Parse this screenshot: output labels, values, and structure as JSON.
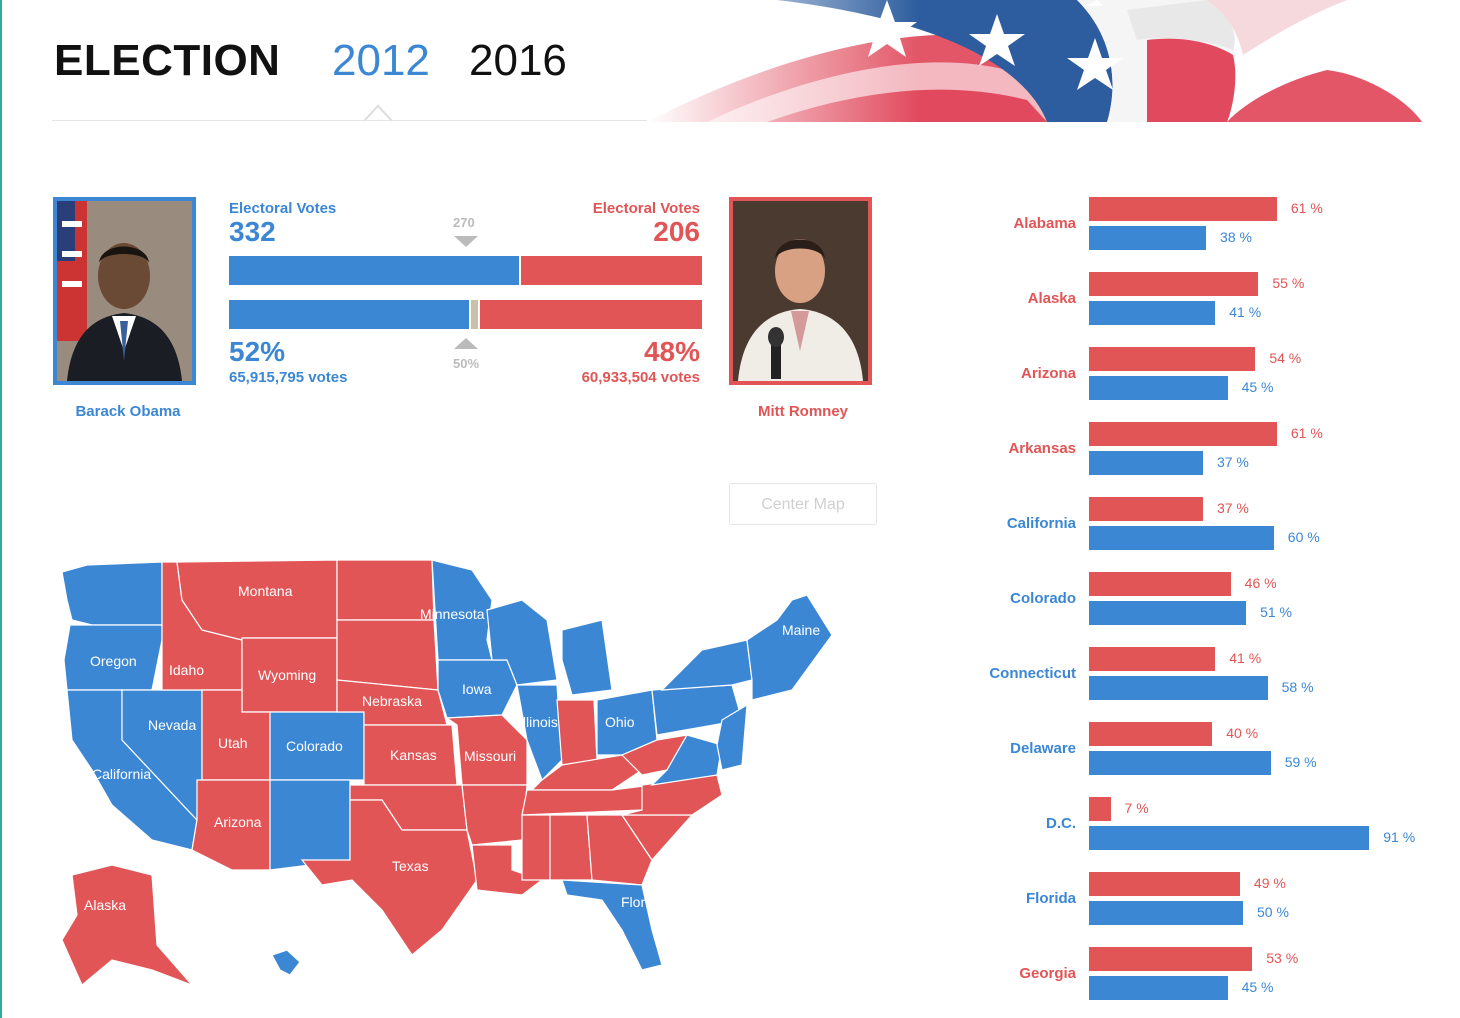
{
  "header": {
    "title": "ELECTION",
    "years": [
      "2012",
      "2016"
    ],
    "selected_year": "2012"
  },
  "candidates": {
    "obama": {
      "name": "Barack Obama",
      "ev_label": "Electoral Votes",
      "ev": "332",
      "pct": "52%",
      "votes": "65,915,795 votes",
      "color": "#3b87d4"
    },
    "romney": {
      "name": "Mitt Romney",
      "ev_label": "Electoral Votes",
      "ev": "206",
      "pct": "48%",
      "votes": "60,933,504 votes",
      "color": "#e15556"
    }
  },
  "markers": {
    "ev_threshold": "270",
    "pct_threshold": "50%"
  },
  "controls": {
    "center_map": "Center Map"
  },
  "map_labels": [
    "Montana",
    "Minnesota",
    "Oregon",
    "Idaho",
    "Wyoming",
    "Nebraska",
    "Iowa",
    "Illinois",
    "Ohio",
    "Maine",
    "Nevada",
    "Utah",
    "Colorado",
    "Kansas",
    "Missouri",
    "California",
    "Arizona",
    "Texas",
    "Alaska",
    "Florida"
  ],
  "chart_data": {
    "type": "bar",
    "orientation": "horizontal",
    "categories": [
      "Alabama",
      "Alaska",
      "Arizona",
      "Arkansas",
      "California",
      "Colorado",
      "Connecticut",
      "Delaware",
      "D.C.",
      "Florida",
      "Georgia"
    ],
    "winners": [
      "red",
      "red",
      "red",
      "red",
      "blue",
      "blue",
      "blue",
      "blue",
      "blue",
      "blue",
      "red"
    ],
    "series": [
      {
        "color": "#e15556",
        "values": [
          61,
          55,
          54,
          61,
          37,
          46,
          41,
          40,
          7,
          49,
          53
        ]
      },
      {
        "color": "#3b87d4",
        "values": [
          38,
          41,
          45,
          37,
          60,
          51,
          58,
          59,
          91,
          50,
          45
        ]
      }
    ],
    "unit": "%",
    "xlim": [
      0,
      100
    ]
  },
  "colors": {
    "blue": "#3b87d4",
    "red": "#e15556"
  }
}
